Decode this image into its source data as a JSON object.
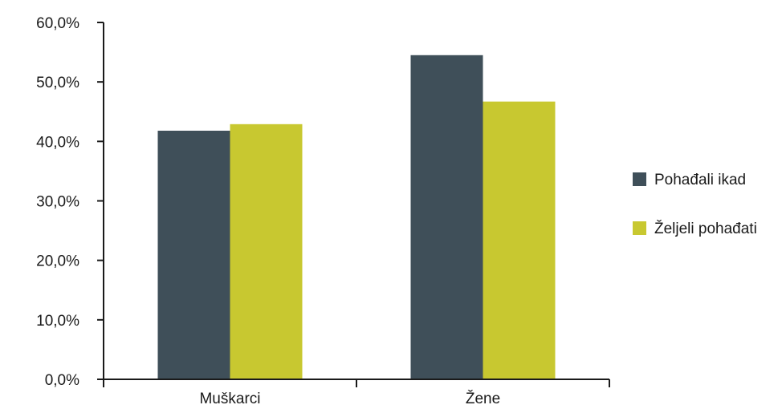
{
  "chart_data": {
    "type": "bar",
    "title": "",
    "xlabel": "",
    "ylabel": "",
    "categories": [
      "Muškarci",
      "Žene"
    ],
    "series": [
      {
        "name": "Pohađali ikad",
        "color": "#3f4f59",
        "values": [
          41.8,
          54.5
        ]
      },
      {
        "name": "Željeli pohađati",
        "color": "#c8c830",
        "values": [
          42.9,
          46.7
        ]
      }
    ],
    "ylim": [
      0,
      60
    ],
    "y_ticks": [
      {
        "value": 0,
        "label": "0,0%"
      },
      {
        "value": 10,
        "label": "10,0%"
      },
      {
        "value": 20,
        "label": "20,0%"
      },
      {
        "value": 30,
        "label": "30,0%"
      },
      {
        "value": 40,
        "label": "40,0%"
      },
      {
        "value": 50,
        "label": "50,0%"
      },
      {
        "value": 60,
        "label": "60,0%"
      }
    ],
    "grid": false,
    "legend_position": "right"
  }
}
